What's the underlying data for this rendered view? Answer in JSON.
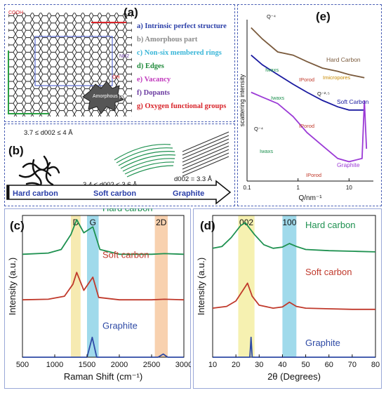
{
  "panel_a": {
    "label": "(a)",
    "items": [
      {
        "text": "a) Intrinsic perfect structure",
        "color": "#2b3fa8"
      },
      {
        "text": "b) Amorphous part",
        "color": "#8a8a8a"
      },
      {
        "text": "c) Non-six membered rings",
        "color": "#39b6d8"
      },
      {
        "text": "d) Edges",
        "color": "#1f8a3a"
      },
      {
        "text": "e) Vacancy",
        "color": "#c13bbd"
      },
      {
        "text": "f) Dopants",
        "color": "#6a3aa0"
      },
      {
        "text": "g) Oxygen functional groups",
        "color": "#d8242a"
      }
    ],
    "amorphous_label": "Amorphous part",
    "groups": [
      "COOH",
      "NH2",
      "OH"
    ]
  },
  "panel_b": {
    "label": "(b)",
    "hard_spacing": "3.7 ≤ d002 ≤ 4 Å",
    "soft_spacing": "3.4 ≤ d002 ≤ 3.6 Å",
    "graphite_spacing": "d002 = 3.3 Å",
    "arrow_labels": [
      "Hard carbon",
      "Soft carbon",
      "Graphite"
    ]
  },
  "panel_c": {
    "label": "(c)",
    "band_labels": [
      "D",
      "G",
      "2D"
    ],
    "series_labels": [
      "Hard carbon",
      "Soft carbon",
      "Graphite"
    ],
    "xlabel": "Raman Shift (cm⁻¹)",
    "ylabel": "Intensity (a.u.)",
    "xticks": [
      "500",
      "1000",
      "1500",
      "2000",
      "2500",
      "3000"
    ]
  },
  "panel_d": {
    "label": "(d)",
    "band_labels": [
      "002",
      "100"
    ],
    "series_labels": [
      "Hard carbon",
      "Soft carbon",
      "Graphite"
    ],
    "xlabel": "2θ (Degrees)",
    "ylabel": "Intensity (a.u.)",
    "xticks": [
      "10",
      "20",
      "30",
      "40",
      "50",
      "60",
      "70",
      "80"
    ]
  },
  "panel_e": {
    "label": "(e)",
    "ylabel": "scattering intensity",
    "xlabel": "Q/nm⁻¹",
    "xticks": [
      "0.1",
      "1",
      "10"
    ],
    "series_labels": [
      "Hard Carbon",
      "Soft Carbon",
      "Graphite"
    ],
    "annotations": [
      "Q⁻⁴",
      "Q⁻⁴",
      "Q⁻²·⁵",
      "Iwaxs",
      "Iwaxs",
      "Iwaxs",
      "IPorod",
      "IPorod",
      "IPorod",
      "Imicropores"
    ]
  },
  "chart_data": [
    {
      "type": "line",
      "title": "(c)",
      "xlabel": "Raman Shift (cm⁻¹)",
      "ylabel": "Intensity (a.u.)",
      "xlim": [
        500,
        3000
      ],
      "series": [
        {
          "name": "Hard carbon",
          "color": "#1e9150",
          "x": [
            500,
            900,
            1100,
            1250,
            1340,
            1450,
            1590,
            1700,
            2000,
            2500,
            2700,
            3000
          ],
          "y": [
            0.42,
            0.44,
            0.5,
            0.75,
            1.0,
            0.78,
            0.88,
            0.5,
            0.42,
            0.42,
            0.43,
            0.42
          ]
        },
        {
          "name": "Soft carbon",
          "color": "#c0392b",
          "x": [
            500,
            900,
            1150,
            1280,
            1340,
            1450,
            1590,
            1680,
            2000,
            2500,
            2700,
            3000
          ],
          "y": [
            0.44,
            0.45,
            0.5,
            0.7,
            0.9,
            0.6,
            0.82,
            0.48,
            0.44,
            0.44,
            0.45,
            0.44
          ]
        },
        {
          "name": "Graphite",
          "color": "#2e4aa5",
          "x": [
            500,
            1250,
            1340,
            1400,
            1500,
            1580,
            1650,
            2500,
            2600,
            2680,
            2750,
            3000
          ],
          "y": [
            0.4,
            0.41,
            0.62,
            0.42,
            0.42,
            1.0,
            0.42,
            0.42,
            0.5,
            0.72,
            0.43,
            0.41
          ]
        }
      ],
      "bands": [
        {
          "label": "D",
          "range": [
            1250,
            1400
          ],
          "color": "#f5e6a3"
        },
        {
          "label": "G",
          "range": [
            1500,
            1680
          ],
          "color": "#8fd3e8"
        },
        {
          "label": "2D",
          "range": [
            2550,
            2750
          ],
          "color": "#f7c9a1"
        }
      ]
    },
    {
      "type": "line",
      "title": "(d)",
      "xlabel": "2θ (Degrees)",
      "ylabel": "Intensity (a.u.)",
      "xlim": [
        10,
        80
      ],
      "series": [
        {
          "name": "Hard carbon",
          "color": "#1e9150",
          "x": [
            10,
            14,
            18,
            22,
            24,
            28,
            32,
            36,
            40,
            43,
            46,
            50,
            60,
            70,
            80
          ],
          "y": [
            0.52,
            0.55,
            0.7,
            0.9,
            0.95,
            0.75,
            0.58,
            0.52,
            0.54,
            0.6,
            0.55,
            0.5,
            0.48,
            0.47,
            0.46
          ]
        },
        {
          "name": "Soft carbon",
          "color": "#c0392b",
          "x": [
            10,
            16,
            20,
            23,
            25,
            27,
            30,
            36,
            40,
            43,
            46,
            50,
            60,
            70,
            80
          ],
          "y": [
            0.3,
            0.33,
            0.42,
            0.6,
            0.72,
            0.5,
            0.35,
            0.3,
            0.32,
            0.4,
            0.33,
            0.3,
            0.29,
            0.28,
            0.28
          ]
        },
        {
          "name": "Graphite",
          "color": "#2e4aa5",
          "x": [
            10,
            25,
            26,
            26.5,
            27,
            28,
            42,
            44,
            46,
            54,
            55,
            56,
            80
          ],
          "y": [
            0.1,
            0.1,
            0.2,
            1.0,
            0.2,
            0.1,
            0.1,
            0.12,
            0.1,
            0.1,
            0.12,
            0.1,
            0.1
          ]
        }
      ],
      "bands": [
        {
          "label": "002",
          "range": [
            21,
            28
          ],
          "color": "#f5eea3"
        },
        {
          "label": "100",
          "range": [
            40,
            46
          ],
          "color": "#8fd3e8"
        }
      ]
    },
    {
      "type": "line",
      "title": "(e)",
      "xlabel": "Q/nm⁻¹",
      "ylabel": "scattering intensity",
      "xscale": "log",
      "xlim": [
        0.1,
        30
      ],
      "series": [
        {
          "name": "Hard Carbon",
          "color": "#7a5a3c",
          "x": [
            0.12,
            0.2,
            0.4,
            0.8,
            1.5,
            3,
            6,
            10,
            20
          ],
          "y": [
            0.95,
            0.88,
            0.8,
            0.78,
            0.74,
            0.7,
            0.68,
            0.66,
            0.64
          ]
        },
        {
          "name": "Soft Carbon",
          "color": "#1a1aa0",
          "x": [
            0.12,
            0.2,
            0.4,
            0.8,
            1.5,
            3,
            6,
            10,
            20
          ],
          "y": [
            0.78,
            0.72,
            0.66,
            0.6,
            0.55,
            0.5,
            0.46,
            0.44,
            0.44
          ]
        },
        {
          "name": "Graphite",
          "color": "#9b3ad6",
          "x": [
            0.12,
            0.2,
            0.4,
            0.8,
            1.5,
            3,
            6,
            10,
            18,
            20,
            22
          ],
          "y": [
            0.55,
            0.52,
            0.48,
            0.4,
            0.3,
            0.22,
            0.14,
            0.12,
            0.14,
            0.5,
            0.2
          ]
        }
      ]
    }
  ]
}
